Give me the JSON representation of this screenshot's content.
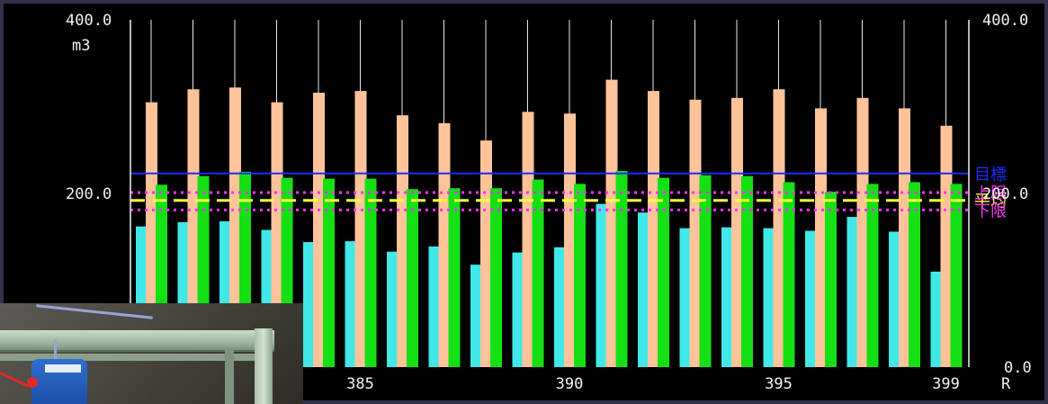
{
  "chart_data": {
    "type": "bar",
    "categories": [
      "380",
      "381",
      "382",
      "383",
      "384",
      "385",
      "386",
      "387",
      "388",
      "389",
      "390",
      "391",
      "392",
      "393",
      "394",
      "395",
      "396",
      "397",
      "398",
      "399"
    ],
    "x_tick_labels": [
      "385",
      "390",
      "395",
      "399"
    ],
    "x_unit_label": "R",
    "y_unit_label": "m3",
    "ylim": [
      0,
      400
    ],
    "y_ticks_left": [
      "400.0",
      "200.0"
    ],
    "y_ticks_right": [
      "400.0",
      "200.0",
      "0.0"
    ],
    "series": [
      {
        "color": "#40e8e8",
        "values": [
          162,
          167,
          168,
          158,
          144,
          145,
          133,
          139,
          118,
          132,
          138,
          188,
          178,
          160,
          161,
          160,
          157,
          173,
          156,
          110
        ]
      },
      {
        "color": "#ffc39a",
        "values": [
          305,
          320,
          322,
          305,
          316,
          318,
          290,
          281,
          261,
          294,
          292,
          331,
          318,
          308,
          310,
          320,
          298,
          310,
          298,
          278
        ]
      },
      {
        "color": "#14e014",
        "values": [
          210,
          220,
          225,
          218,
          217,
          217,
          205,
          206,
          206,
          216,
          211,
          226,
          218,
          221,
          220,
          213,
          202,
          211,
          213,
          211
        ]
      }
    ],
    "reference_lines": [
      {
        "label": "目標",
        "value": 223,
        "style": "solid",
        "color": "#1c2cff"
      },
      {
        "label": "平均",
        "value": 192,
        "style": "dashed",
        "color": "#ffff33"
      },
      {
        "label": "上限",
        "value": 201,
        "style": "dotted",
        "color": "#ff33ff"
      },
      {
        "label": "下限",
        "value": 181,
        "style": "dotted",
        "color": "#ff33ff"
      }
    ],
    "grid": "vertical lines at each category",
    "colors": {
      "axis": "#f2f2f2",
      "background": "#000000"
    }
  },
  "photo_inset": {
    "subject": "ceiling-mounted-sensor-photo"
  }
}
